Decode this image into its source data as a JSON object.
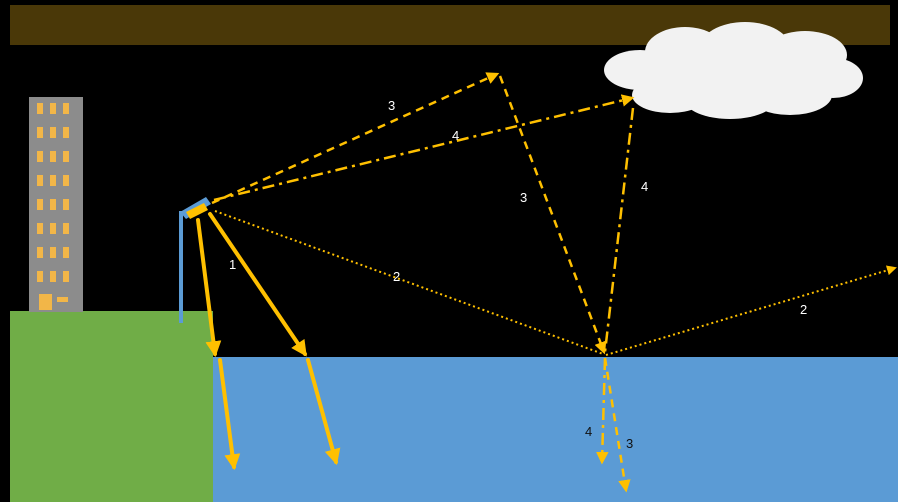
{
  "colors": {
    "sky": "#000000",
    "top_band": "#4a3808",
    "ground": "#70ad47",
    "water": "#5b9bd5",
    "ray": "#ffc000",
    "building": "#8c8c8c",
    "window": "#f2b648",
    "luminaire": "#5b9bd5",
    "cloud": "#f2f2f2",
    "label_sky": "#ffffff",
    "label_water": "#111111"
  },
  "icons": {
    "building": "office-building-icon",
    "luminaire": "street-light-icon",
    "cloud": "cloud-icon"
  },
  "labels": {
    "ray1": "1",
    "ray2_first": "2",
    "ray2_second": "2",
    "ray3_up": "3",
    "ray3_down": "3",
    "ray3_water": "3",
    "ray4_up": "4",
    "ray4_down": "4",
    "ray4_water": "4"
  }
}
